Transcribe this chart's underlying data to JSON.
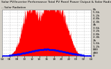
{
  "title": "Solar PV/Inverter Performance Total PV Panel Power Output & Solar Radiation",
  "legend": "-- Solar Radiation",
  "bg_color": "#d4d0c8",
  "plot_bg": "#ffffff",
  "red_color": "#ff0000",
  "blue_color": "#0000ff",
  "grid_color": "#aaaaaa",
  "ylabel_right": [
    "6k",
    "5.6k",
    "5.2k",
    "4.8k",
    "4.4k",
    "4k",
    "3.6k",
    "3.2k",
    "2.8k",
    "2.4k",
    "2k",
    "1.6k",
    "1.2k",
    "800",
    "400",
    "0"
  ],
  "ymax": 6000,
  "solar_max": 1000,
  "num_points": 288
}
